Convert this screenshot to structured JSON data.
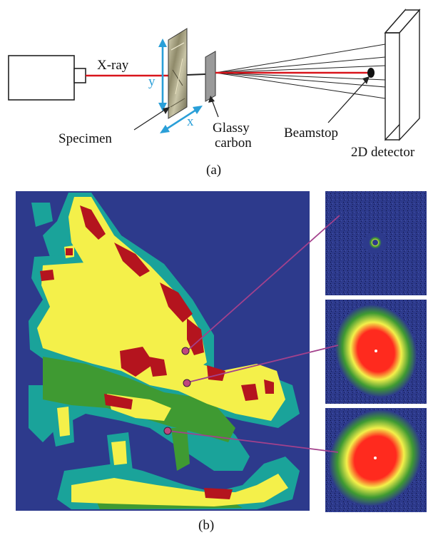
{
  "panel_a": {
    "labels": {
      "xray": "X-ray",
      "specimen": "Specimen",
      "glassy_carbon_line1": "Glassy",
      "glassy_carbon_line2": "carbon",
      "beamstop": "Beamstop",
      "detector": "2D detector",
      "axis_x": "x",
      "axis_y": "y",
      "caption": "(a)"
    },
    "colors": {
      "beam": "#d9141b",
      "axis_arrows": "#2a9fd8",
      "source_box": "#ffffff"
    }
  },
  "panel_b": {
    "caption": "(b)",
    "colors": {
      "background": "#2d3a8c",
      "teal": "#1aa39a",
      "green": "#3f9a32",
      "yellow": "#f4f04a",
      "red": "#b4141e",
      "marker": "#c0467e",
      "leader": "#a3418c"
    },
    "markers_count": 3,
    "insets": [
      {
        "name": "diffuse-ring-pattern"
      },
      {
        "name": "strong-elliptical-pattern-upper"
      },
      {
        "name": "strong-elliptical-pattern-lower"
      }
    ]
  }
}
